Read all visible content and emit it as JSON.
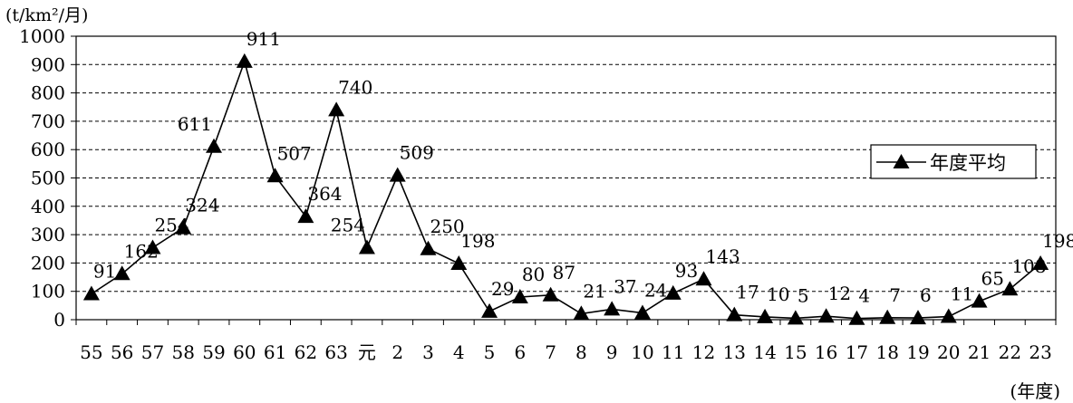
{
  "chart_data": {
    "type": "line",
    "ylabel": "(t/km²/月)",
    "xlabel": "(年度)",
    "ylim": [
      0,
      1000
    ],
    "yticks": [
      0,
      100,
      200,
      300,
      400,
      500,
      600,
      700,
      800,
      900,
      1000
    ],
    "grid": true,
    "legend": "right",
    "categories": [
      "55",
      "56",
      "57",
      "58",
      "59",
      "60",
      "61",
      "62",
      "63",
      "元",
      "2",
      "3",
      "4",
      "5",
      "6",
      "7",
      "8",
      "9",
      "10",
      "11",
      "12",
      "13",
      "14",
      "15",
      "16",
      "17",
      "18",
      "19",
      "20",
      "21",
      "22",
      "23"
    ],
    "series": [
      {
        "name": "年度平均",
        "color": "#000000",
        "values": [
          91,
          162,
          254,
          324,
          611,
          911,
          507,
          364,
          740,
          254,
          509,
          250,
          198,
          29,
          80,
          87,
          21,
          37,
          24,
          93,
          143,
          17,
          10,
          5,
          12,
          4,
          7,
          6,
          11,
          65,
          108,
          198
        ]
      }
    ]
  }
}
